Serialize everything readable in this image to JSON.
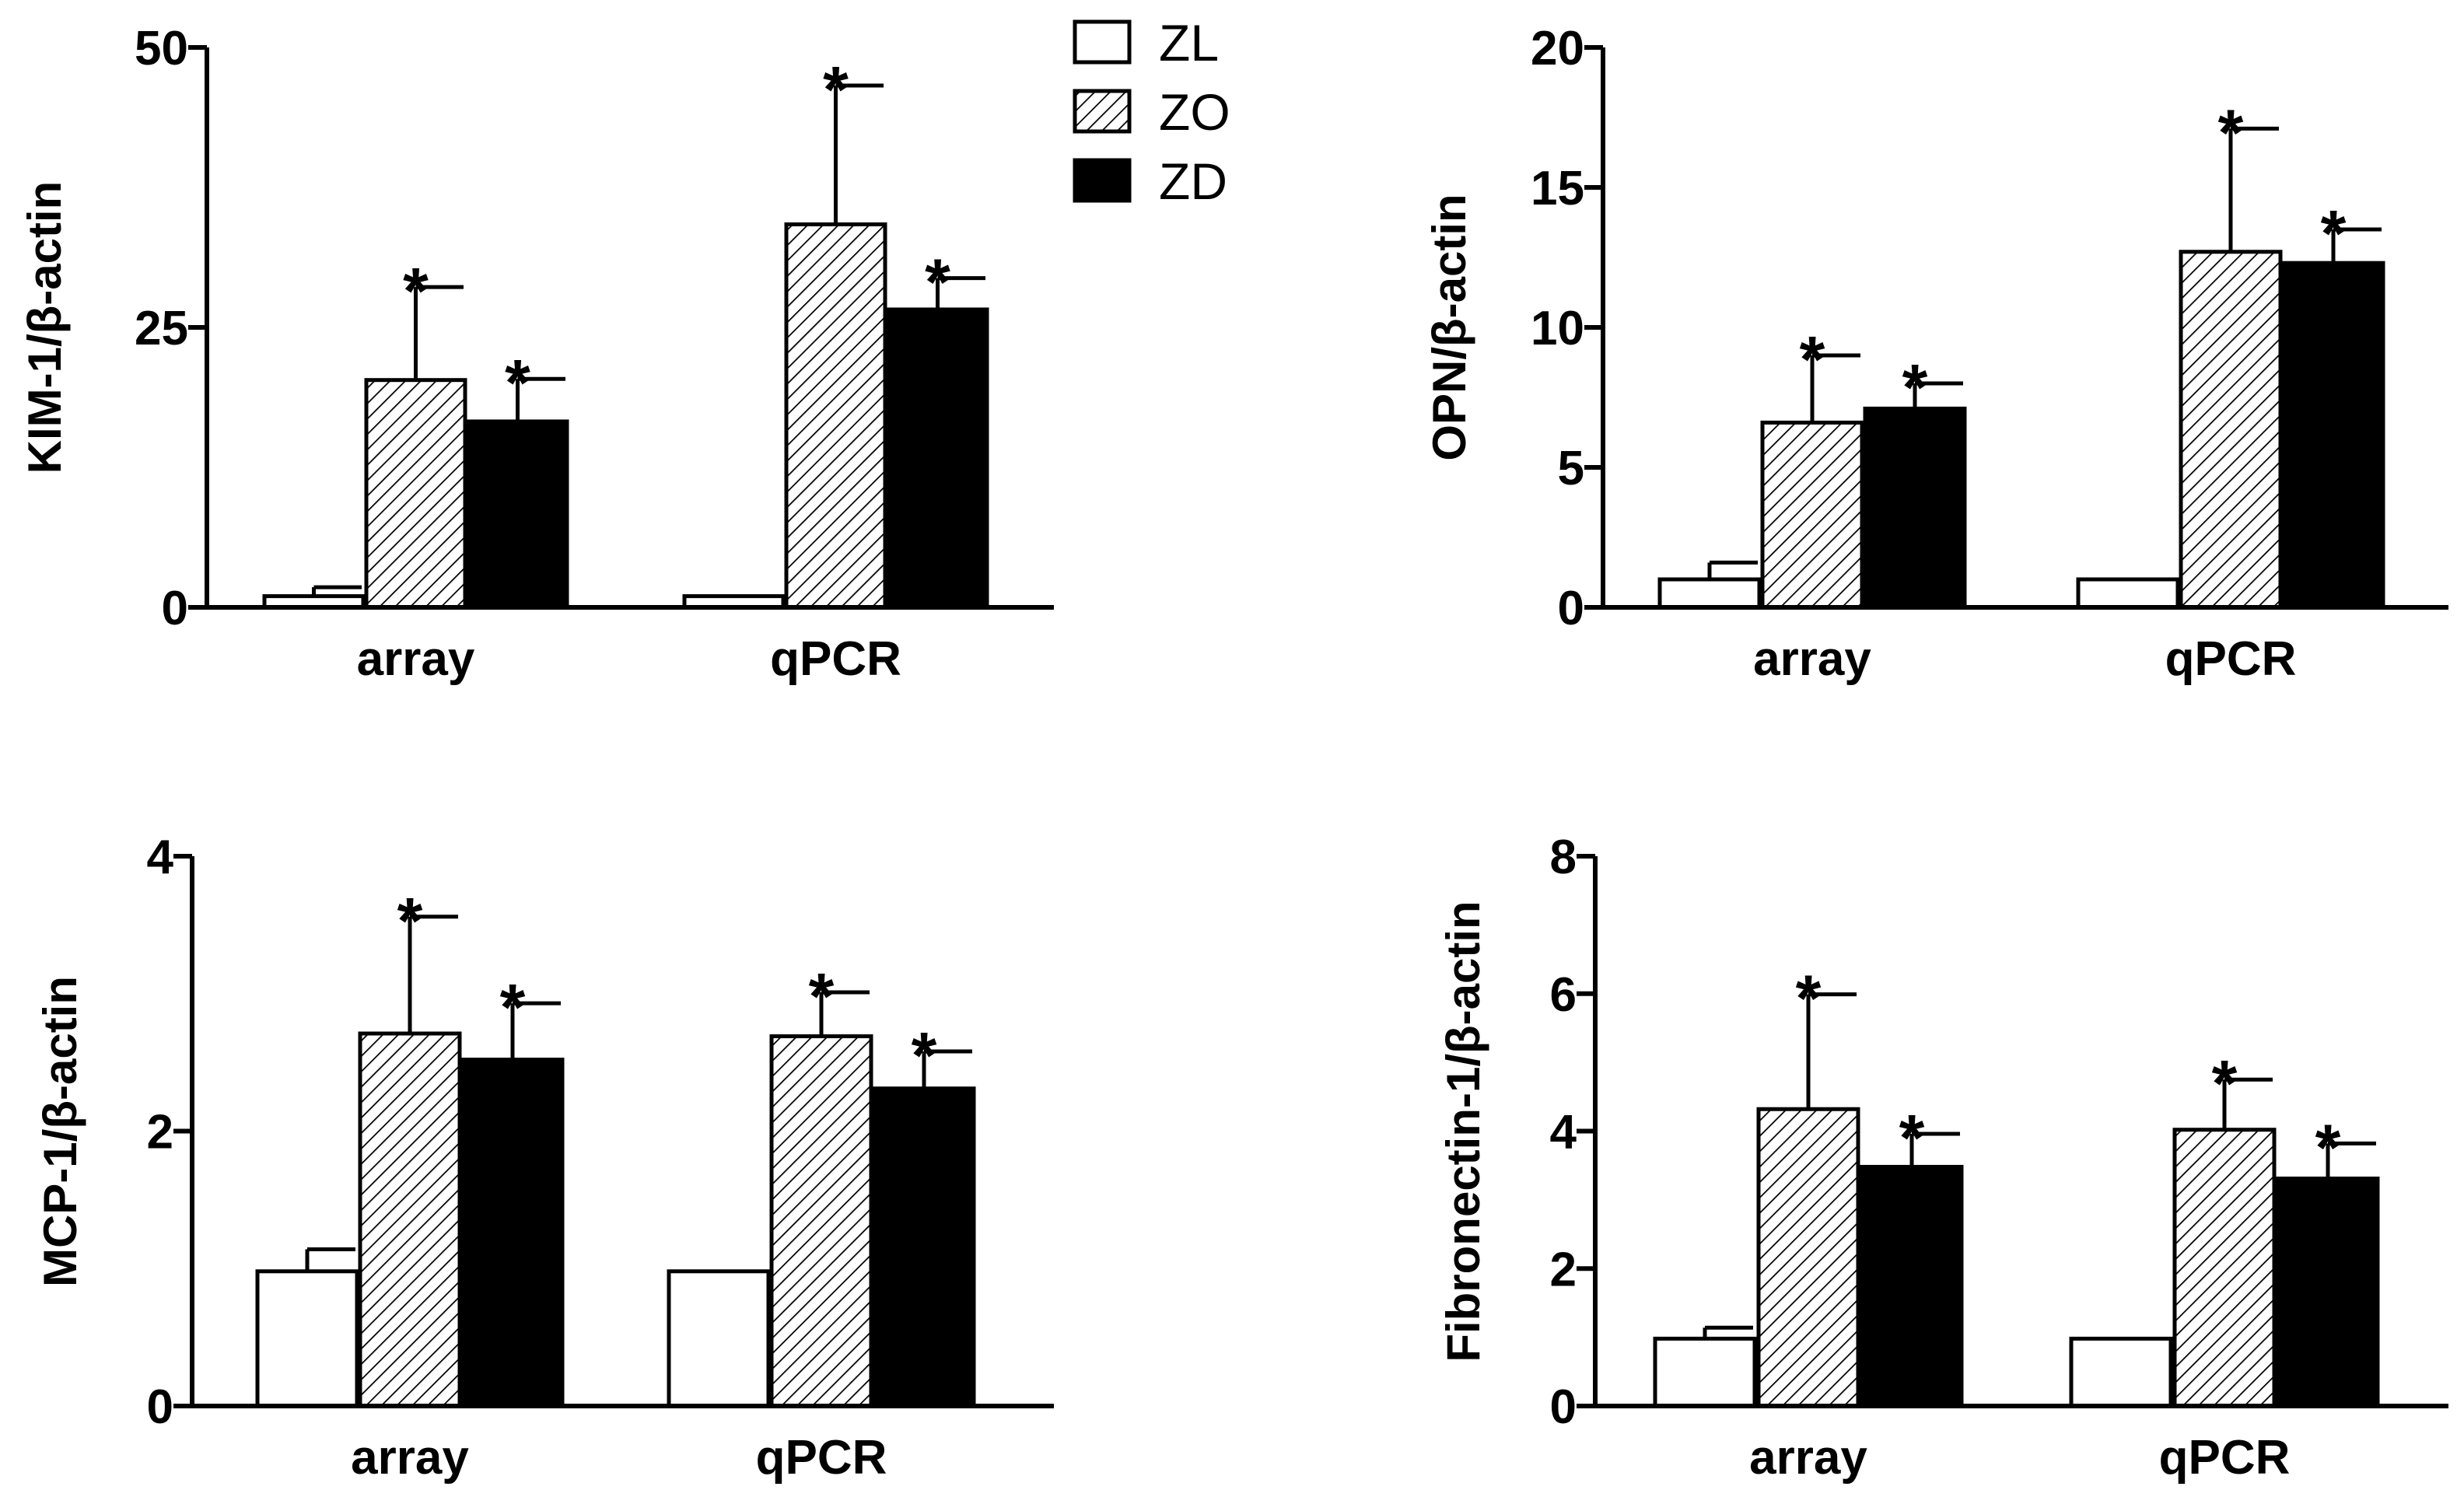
{
  "legend": {
    "position": "top-center",
    "entries": [
      {
        "label": "ZL",
        "fill": "open"
      },
      {
        "label": "ZO",
        "fill": "hatched"
      },
      {
        "label": "ZD",
        "fill": "solid"
      }
    ]
  },
  "colors": {
    "ink": "#000000",
    "background": "#ffffff"
  },
  "chart_data": [
    {
      "type": "bar",
      "panel": "top-left",
      "categories": [
        "array",
        "qPCR"
      ],
      "ylabel": "KIM-1/β-actin",
      "ylim": [
        0,
        50
      ],
      "yticks": [
        "0",
        "25",
        "50"
      ],
      "series": [
        {
          "name": "ZL",
          "values": [
            1.0,
            1.0
          ],
          "errors": [
            0.8,
            0.0
          ],
          "significant": [
            false,
            false
          ]
        },
        {
          "name": "ZO",
          "values": [
            20.3,
            34.2
          ],
          "errors": [
            8.3,
            12.4
          ],
          "significant": [
            true,
            true
          ]
        },
        {
          "name": "ZD",
          "values": [
            16.6,
            26.6
          ],
          "errors": [
            3.8,
            2.8
          ],
          "significant": [
            true,
            true
          ]
        }
      ],
      "significance_mark": "*"
    },
    {
      "type": "bar",
      "panel": "top-right",
      "categories": [
        "array",
        "qPCR"
      ],
      "ylabel": "OPN/β-actin",
      "ylim": [
        0,
        20
      ],
      "yticks": [
        "0",
        "5",
        "10",
        "15",
        "20"
      ],
      "series": [
        {
          "name": "ZL",
          "values": [
            1.0,
            1.0
          ],
          "errors": [
            0.6,
            0.0
          ],
          "significant": [
            false,
            false
          ]
        },
        {
          "name": "ZO",
          "values": [
            6.6,
            12.7
          ],
          "errors": [
            2.4,
            4.4
          ],
          "significant": [
            true,
            true
          ]
        },
        {
          "name": "ZD",
          "values": [
            7.1,
            12.3
          ],
          "errors": [
            0.9,
            1.2
          ],
          "significant": [
            true,
            true
          ]
        }
      ],
      "significance_mark": "*"
    },
    {
      "type": "bar",
      "panel": "bottom-left",
      "categories": [
        "array",
        "qPCR"
      ],
      "ylabel": "MCP-1/β-actin",
      "ylim": [
        0,
        4
      ],
      "yticks": [
        "0",
        "2",
        "4"
      ],
      "series": [
        {
          "name": "ZL",
          "values": [
            0.98,
            0.98
          ],
          "errors": [
            0.16,
            0.0
          ],
          "significant": [
            false,
            false
          ]
        },
        {
          "name": "ZO",
          "values": [
            2.71,
            2.69
          ],
          "errors": [
            0.85,
            0.32
          ],
          "significant": [
            true,
            true
          ]
        },
        {
          "name": "ZD",
          "values": [
            2.52,
            2.31
          ],
          "errors": [
            0.41,
            0.27
          ],
          "significant": [
            true,
            true
          ]
        }
      ],
      "significance_mark": "*"
    },
    {
      "type": "bar",
      "panel": "bottom-right",
      "categories": [
        "array",
        "qPCR"
      ],
      "ylabel": "Fibronectin-1/β-actin",
      "ylim": [
        0,
        8
      ],
      "yticks": [
        "0",
        "2",
        "4",
        "6",
        "8"
      ],
      "series": [
        {
          "name": "ZL",
          "values": [
            0.98,
            0.98
          ],
          "errors": [
            0.16,
            0.0
          ],
          "significant": [
            false,
            false
          ]
        },
        {
          "name": "ZO",
          "values": [
            4.32,
            4.02
          ],
          "errors": [
            1.67,
            0.73
          ],
          "significant": [
            true,
            true
          ]
        },
        {
          "name": "ZD",
          "values": [
            3.48,
            3.31
          ],
          "errors": [
            0.48,
            0.51
          ],
          "significant": [
            true,
            true
          ]
        }
      ],
      "significance_mark": "*"
    }
  ]
}
